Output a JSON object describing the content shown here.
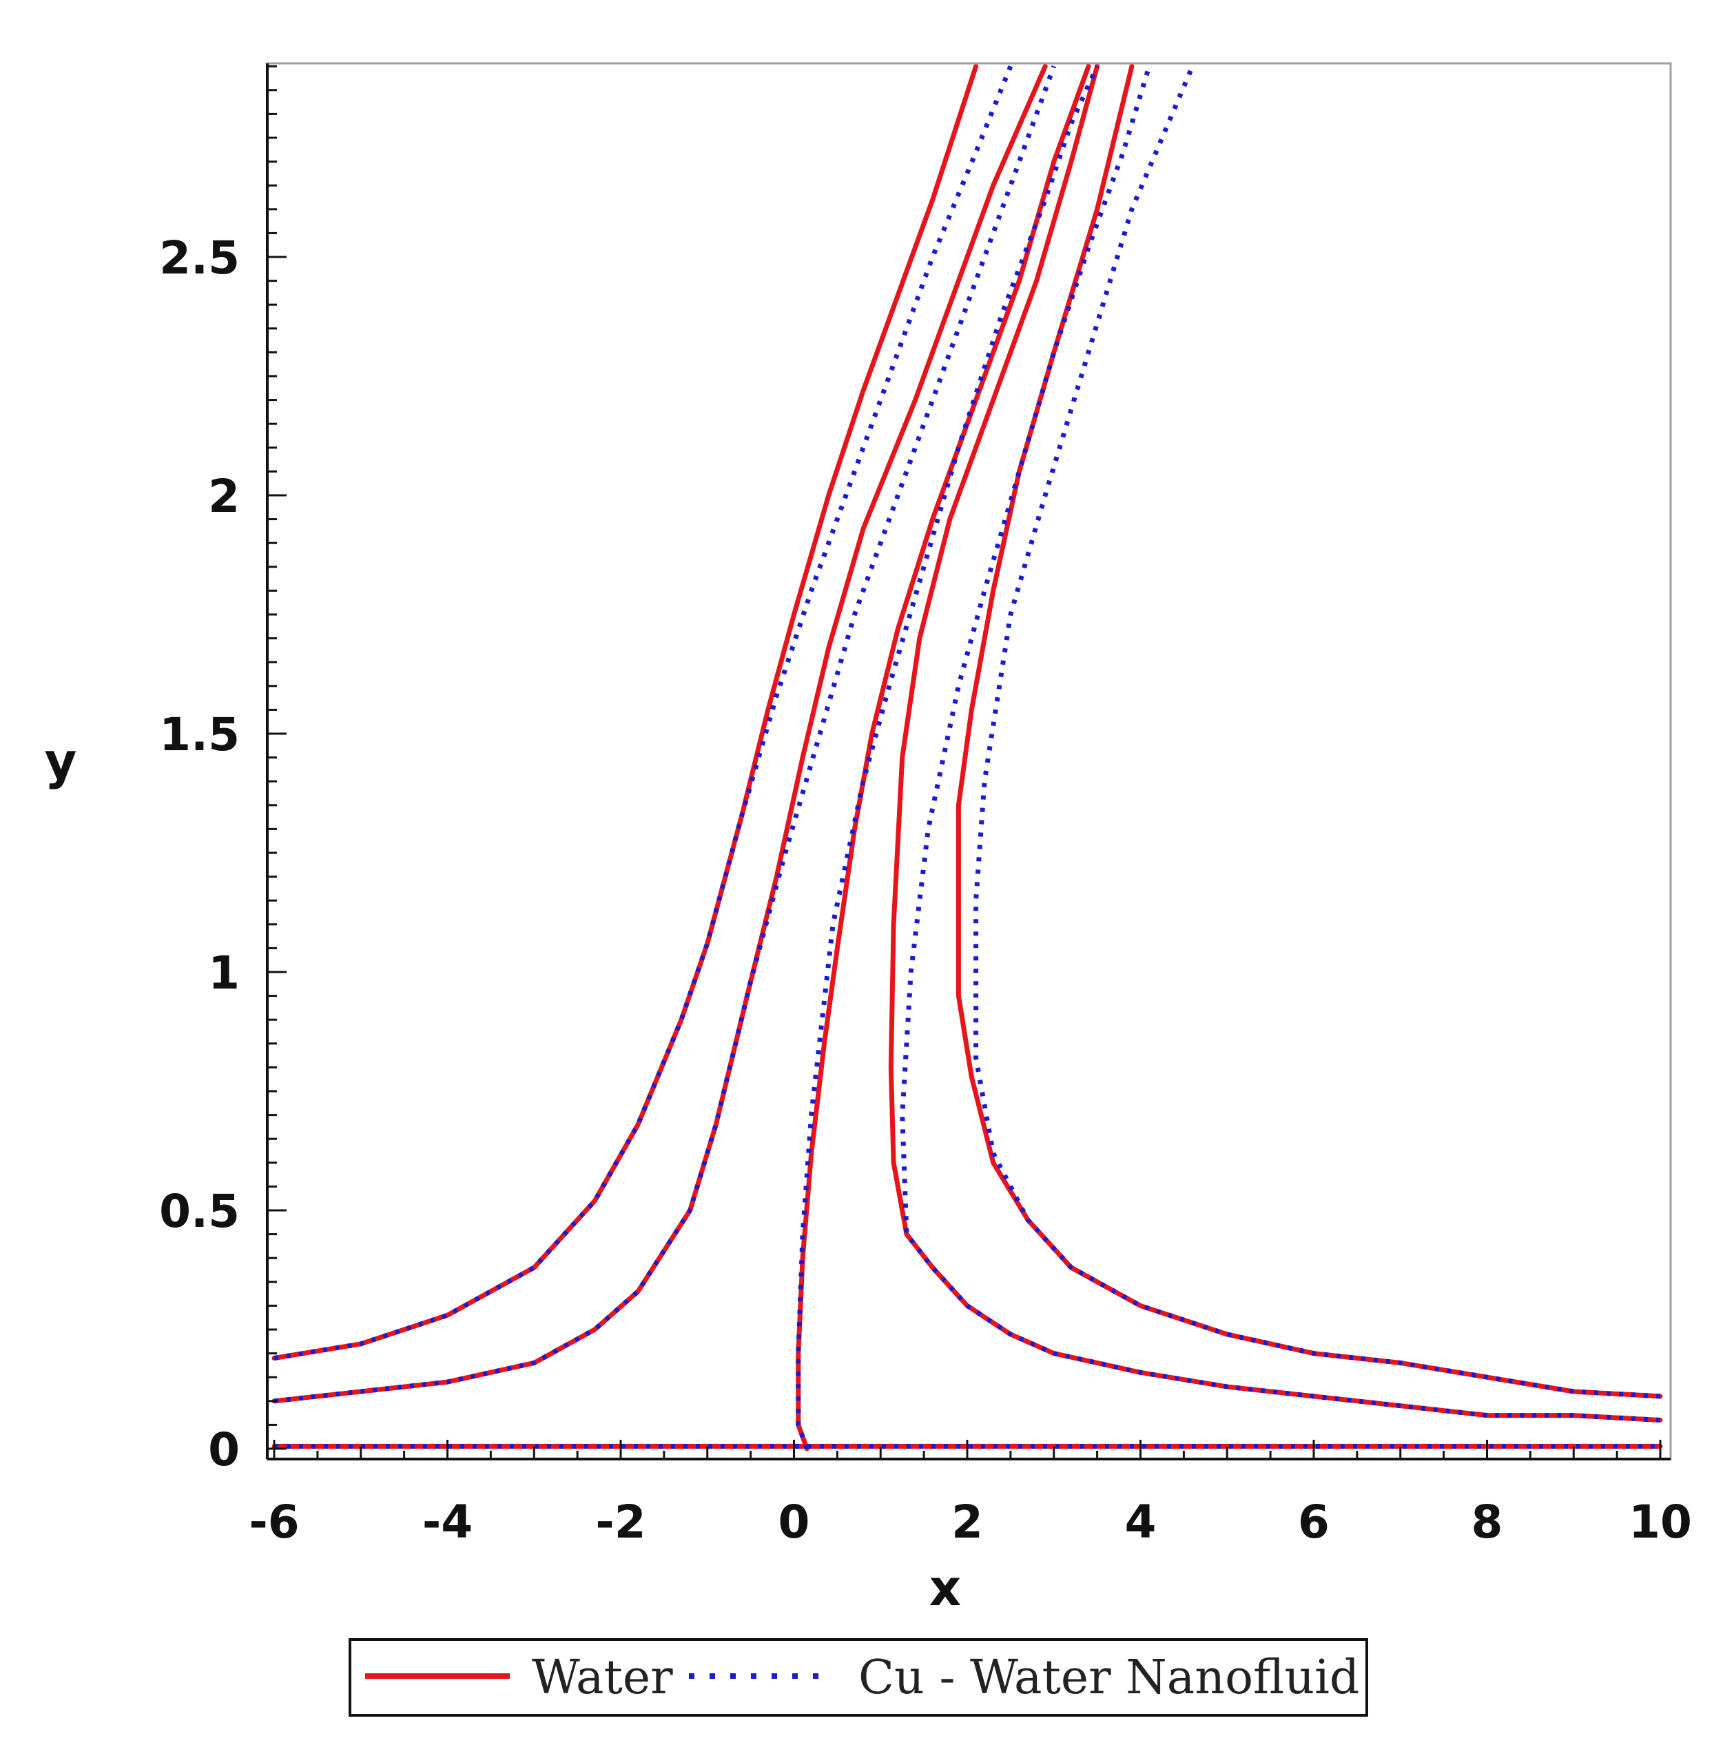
{
  "chart_data": {
    "type": "line",
    "title": "",
    "xlabel": "x",
    "ylabel": "y",
    "xlim": [
      -6,
      10
    ],
    "ylim": [
      0,
      2.9
    ],
    "x_ticks": [
      -6,
      -4,
      -2,
      0,
      2,
      4,
      6,
      8,
      10
    ],
    "x_tick_labels": [
      "-6",
      "-4",
      "-2",
      "0",
      "2",
      "4",
      "6",
      "8",
      "10"
    ],
    "y_ticks": [
      0,
      0.5,
      1,
      1.5,
      2,
      2.5
    ],
    "y_tick_labels": [
      "0",
      "0.5",
      "1",
      "1.5",
      "2",
      "2.5"
    ],
    "grid": false,
    "legend": {
      "placement": "bottom",
      "entries": [
        {
          "label": "Water",
          "color": "#e8141b",
          "style": "solid"
        },
        {
          "label": "Cu - Water Nanofluid",
          "color": "#1a1ad6",
          "style": "dotted"
        }
      ]
    },
    "series": [
      {
        "name": "Water",
        "color": "#e8141b",
        "style": "solid",
        "lines": [
          [
            [
              -6,
              0.005
            ],
            [
              10,
              0.005
            ]
          ],
          [
            [
              -6,
              0.19
            ],
            [
              -5,
              0.22
            ],
            [
              -4,
              0.28
            ],
            [
              -3,
              0.38
            ],
            [
              -2.3,
              0.52
            ],
            [
              -1.8,
              0.68
            ],
            [
              -1.3,
              0.9
            ],
            [
              -1,
              1.06
            ],
            [
              -0.6,
              1.33
            ],
            [
              -0.3,
              1.55
            ],
            [
              0,
              1.75
            ],
            [
              0.4,
              2.0
            ],
            [
              0.8,
              2.22
            ],
            [
              1.2,
              2.42
            ],
            [
              1.6,
              2.62
            ],
            [
              2.1,
              2.9
            ]
          ],
          [
            [
              -6,
              0.1
            ],
            [
              -5,
              0.12
            ],
            [
              -4,
              0.14
            ],
            [
              -3,
              0.18
            ],
            [
              -2.3,
              0.25
            ],
            [
              -1.8,
              0.33
            ],
            [
              -1.2,
              0.5
            ],
            [
              -0.9,
              0.68
            ],
            [
              -0.5,
              0.98
            ],
            [
              -0.2,
              1.2
            ],
            [
              0.1,
              1.45
            ],
            [
              0.4,
              1.68
            ],
            [
              0.8,
              1.93
            ],
            [
              1.4,
              2.2
            ],
            [
              1.9,
              2.45
            ],
            [
              2.3,
              2.65
            ],
            [
              2.9,
              2.9
            ]
          ],
          [
            [
              0.15,
              0
            ],
            [
              0.05,
              0.05
            ],
            [
              0.05,
              0.2
            ],
            [
              0.1,
              0.4
            ],
            [
              0.2,
              0.62
            ],
            [
              0.35,
              0.85
            ],
            [
              0.5,
              1.05
            ],
            [
              0.7,
              1.3
            ],
            [
              0.9,
              1.5
            ],
            [
              1.2,
              1.72
            ],
            [
              1.6,
              1.95
            ],
            [
              2.1,
              2.2
            ],
            [
              2.6,
              2.45
            ],
            [
              3.0,
              2.7
            ],
            [
              3.4,
              2.9
            ]
          ],
          [
            [
              10,
              0.06
            ],
            [
              9,
              0.07
            ],
            [
              8,
              0.07
            ],
            [
              7,
              0.09
            ],
            [
              6,
              0.11
            ],
            [
              5,
              0.13
            ],
            [
              4,
              0.16
            ],
            [
              3,
              0.2
            ],
            [
              2.5,
              0.24
            ],
            [
              2,
              0.3
            ],
            [
              1.6,
              0.38
            ],
            [
              1.3,
              0.45
            ],
            [
              1.15,
              0.6
            ],
            [
              1.12,
              0.8
            ],
            [
              1.15,
              1.1
            ],
            [
              1.25,
              1.45
            ],
            [
              1.45,
              1.7
            ],
            [
              1.8,
              1.95
            ],
            [
              2.3,
              2.2
            ],
            [
              2.8,
              2.45
            ],
            [
              3.2,
              2.7
            ],
            [
              3.5,
              2.9
            ]
          ],
          [
            [
              10,
              0.11
            ],
            [
              9,
              0.12
            ],
            [
              8,
              0.15
            ],
            [
              7,
              0.18
            ],
            [
              6,
              0.2
            ],
            [
              5,
              0.24
            ],
            [
              4,
              0.3
            ],
            [
              3.2,
              0.38
            ],
            [
              2.7,
              0.48
            ],
            [
              2.3,
              0.6
            ],
            [
              2.05,
              0.78
            ],
            [
              1.9,
              0.95
            ],
            [
              1.9,
              1.35
            ],
            [
              2.05,
              1.55
            ],
            [
              2.3,
              1.8
            ],
            [
              2.6,
              2.05
            ],
            [
              3.0,
              2.3
            ],
            [
              3.5,
              2.6
            ],
            [
              3.9,
              2.9
            ]
          ]
        ]
      },
      {
        "name": "Cu - Water Nanofluid",
        "color": "#1a1ad6",
        "style": "dotted",
        "lines": [
          [
            [
              -6,
              0.005
            ],
            [
              10,
              0.005
            ]
          ],
          [
            [
              -6,
              0.19
            ],
            [
              -5,
              0.22
            ],
            [
              -4,
              0.28
            ],
            [
              -3,
              0.38
            ],
            [
              -2.3,
              0.52
            ],
            [
              -1.8,
              0.68
            ],
            [
              -1.3,
              0.9
            ],
            [
              -1,
              1.06
            ],
            [
              -0.6,
              1.33
            ],
            [
              -0.2,
              1.58
            ],
            [
              0.2,
              1.8
            ],
            [
              0.7,
              2.05
            ],
            [
              1.2,
              2.3
            ],
            [
              1.6,
              2.5
            ],
            [
              2.1,
              2.72
            ],
            [
              2.5,
              2.9
            ]
          ],
          [
            [
              -6,
              0.1
            ],
            [
              -5,
              0.12
            ],
            [
              -4,
              0.14
            ],
            [
              -3,
              0.18
            ],
            [
              -2.3,
              0.25
            ],
            [
              -1.8,
              0.33
            ],
            [
              -1.2,
              0.5
            ],
            [
              -0.9,
              0.68
            ],
            [
              -0.5,
              0.98
            ],
            [
              -0.1,
              1.25
            ],
            [
              0.3,
              1.5
            ],
            [
              0.7,
              1.75
            ],
            [
              1.2,
              2.0
            ],
            [
              1.7,
              2.25
            ],
            [
              2.2,
              2.5
            ],
            [
              2.6,
              2.7
            ],
            [
              3.0,
              2.9
            ]
          ],
          [
            [
              0.15,
              0
            ],
            [
              0.05,
              0.05
            ],
            [
              0.05,
              0.2
            ],
            [
              0.1,
              0.45
            ],
            [
              0.2,
              0.7
            ],
            [
              0.45,
              1.1
            ],
            [
              0.8,
              1.4
            ],
            [
              1.1,
              1.6
            ],
            [
              1.5,
              1.85
            ],
            [
              1.9,
              2.1
            ],
            [
              2.4,
              2.38
            ],
            [
              2.9,
              2.62
            ],
            [
              3.2,
              2.78
            ],
            [
              3.5,
              2.9
            ]
          ],
          [
            [
              10,
              0.06
            ],
            [
              9,
              0.07
            ],
            [
              8,
              0.07
            ],
            [
              7,
              0.09
            ],
            [
              6,
              0.11
            ],
            [
              5,
              0.13
            ],
            [
              4,
              0.16
            ],
            [
              3,
              0.2
            ],
            [
              2.5,
              0.24
            ],
            [
              2,
              0.3
            ],
            [
              1.6,
              0.38
            ],
            [
              1.3,
              0.45
            ],
            [
              1.25,
              0.7
            ],
            [
              1.35,
              1.0
            ],
            [
              1.55,
              1.3
            ],
            [
              1.9,
              1.6
            ],
            [
              2.2,
              1.8
            ],
            [
              2.6,
              2.05
            ],
            [
              3.0,
              2.3
            ],
            [
              3.4,
              2.52
            ],
            [
              3.8,
              2.72
            ],
            [
              4.1,
              2.9
            ]
          ],
          [
            [
              10,
              0.11
            ],
            [
              9,
              0.12
            ],
            [
              8,
              0.15
            ],
            [
              7,
              0.18
            ],
            [
              6,
              0.2
            ],
            [
              5,
              0.24
            ],
            [
              4,
              0.3
            ],
            [
              3.2,
              0.38
            ],
            [
              2.7,
              0.48
            ],
            [
              2.3,
              0.62
            ],
            [
              2.1,
              0.82
            ],
            [
              2.1,
              1.15
            ],
            [
              2.2,
              1.4
            ],
            [
              2.5,
              1.75
            ],
            [
              2.9,
              2.0
            ],
            [
              3.4,
              2.3
            ],
            [
              3.9,
              2.6
            ],
            [
              4.6,
              2.9
            ]
          ]
        ]
      }
    ]
  }
}
